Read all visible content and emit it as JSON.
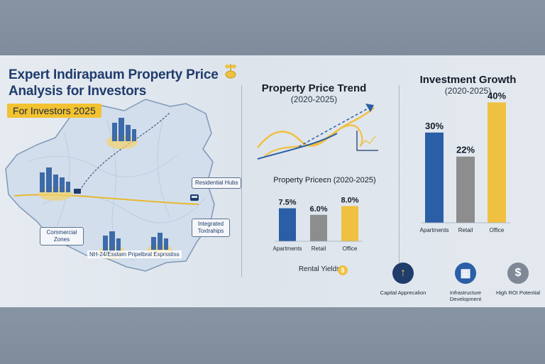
{
  "header": {
    "title": "Expert Indirapaum Property Price Analysis for Investors",
    "badge": "For Investors 2025"
  },
  "map": {
    "labels": {
      "residential": "Residential Hubs",
      "expressway": "NH-24/Esstam Pripelbral Exprsstiss",
      "commercial": "Commercial Zones",
      "townships": "Integrated Toxtrahips"
    }
  },
  "trend": {
    "title": "Property Price Trend",
    "subtitle": "(2020-2025)"
  },
  "colors": {
    "blue": "#2a5ea6",
    "gray": "#8d8d8d",
    "gold": "#f0c040",
    "navy": "#1f3c6b"
  },
  "chart_data": [
    {
      "type": "bar",
      "title": "Property Priceєn (2020-2025)",
      "categories": [
        "Apartments",
        "Retail",
        "Office"
      ],
      "values": [
        7.5,
        6.0,
        8.0
      ],
      "labels": [
        "7.5%",
        "6.0%",
        "8.0%"
      ],
      "xlabel": "Rental Yields",
      "ylim": [
        0,
        10
      ]
    },
    {
      "type": "bar",
      "title": "Investment Growth",
      "subtitle": "(2020-2025)",
      "categories": [
        "Apartments",
        "Retail",
        "Office"
      ],
      "values": [
        30,
        22,
        40
      ],
      "labels": [
        "30%",
        "22%",
        "40%"
      ],
      "ylim": [
        0,
        50
      ]
    }
  ],
  "features": [
    {
      "label": "Capital Apprecalion",
      "icon": "arrow-up-icon"
    },
    {
      "label": "Infrastructure Development",
      "icon": "building-icon"
    },
    {
      "label": "High ROI Potential",
      "icon": "money-hand-icon"
    }
  ]
}
